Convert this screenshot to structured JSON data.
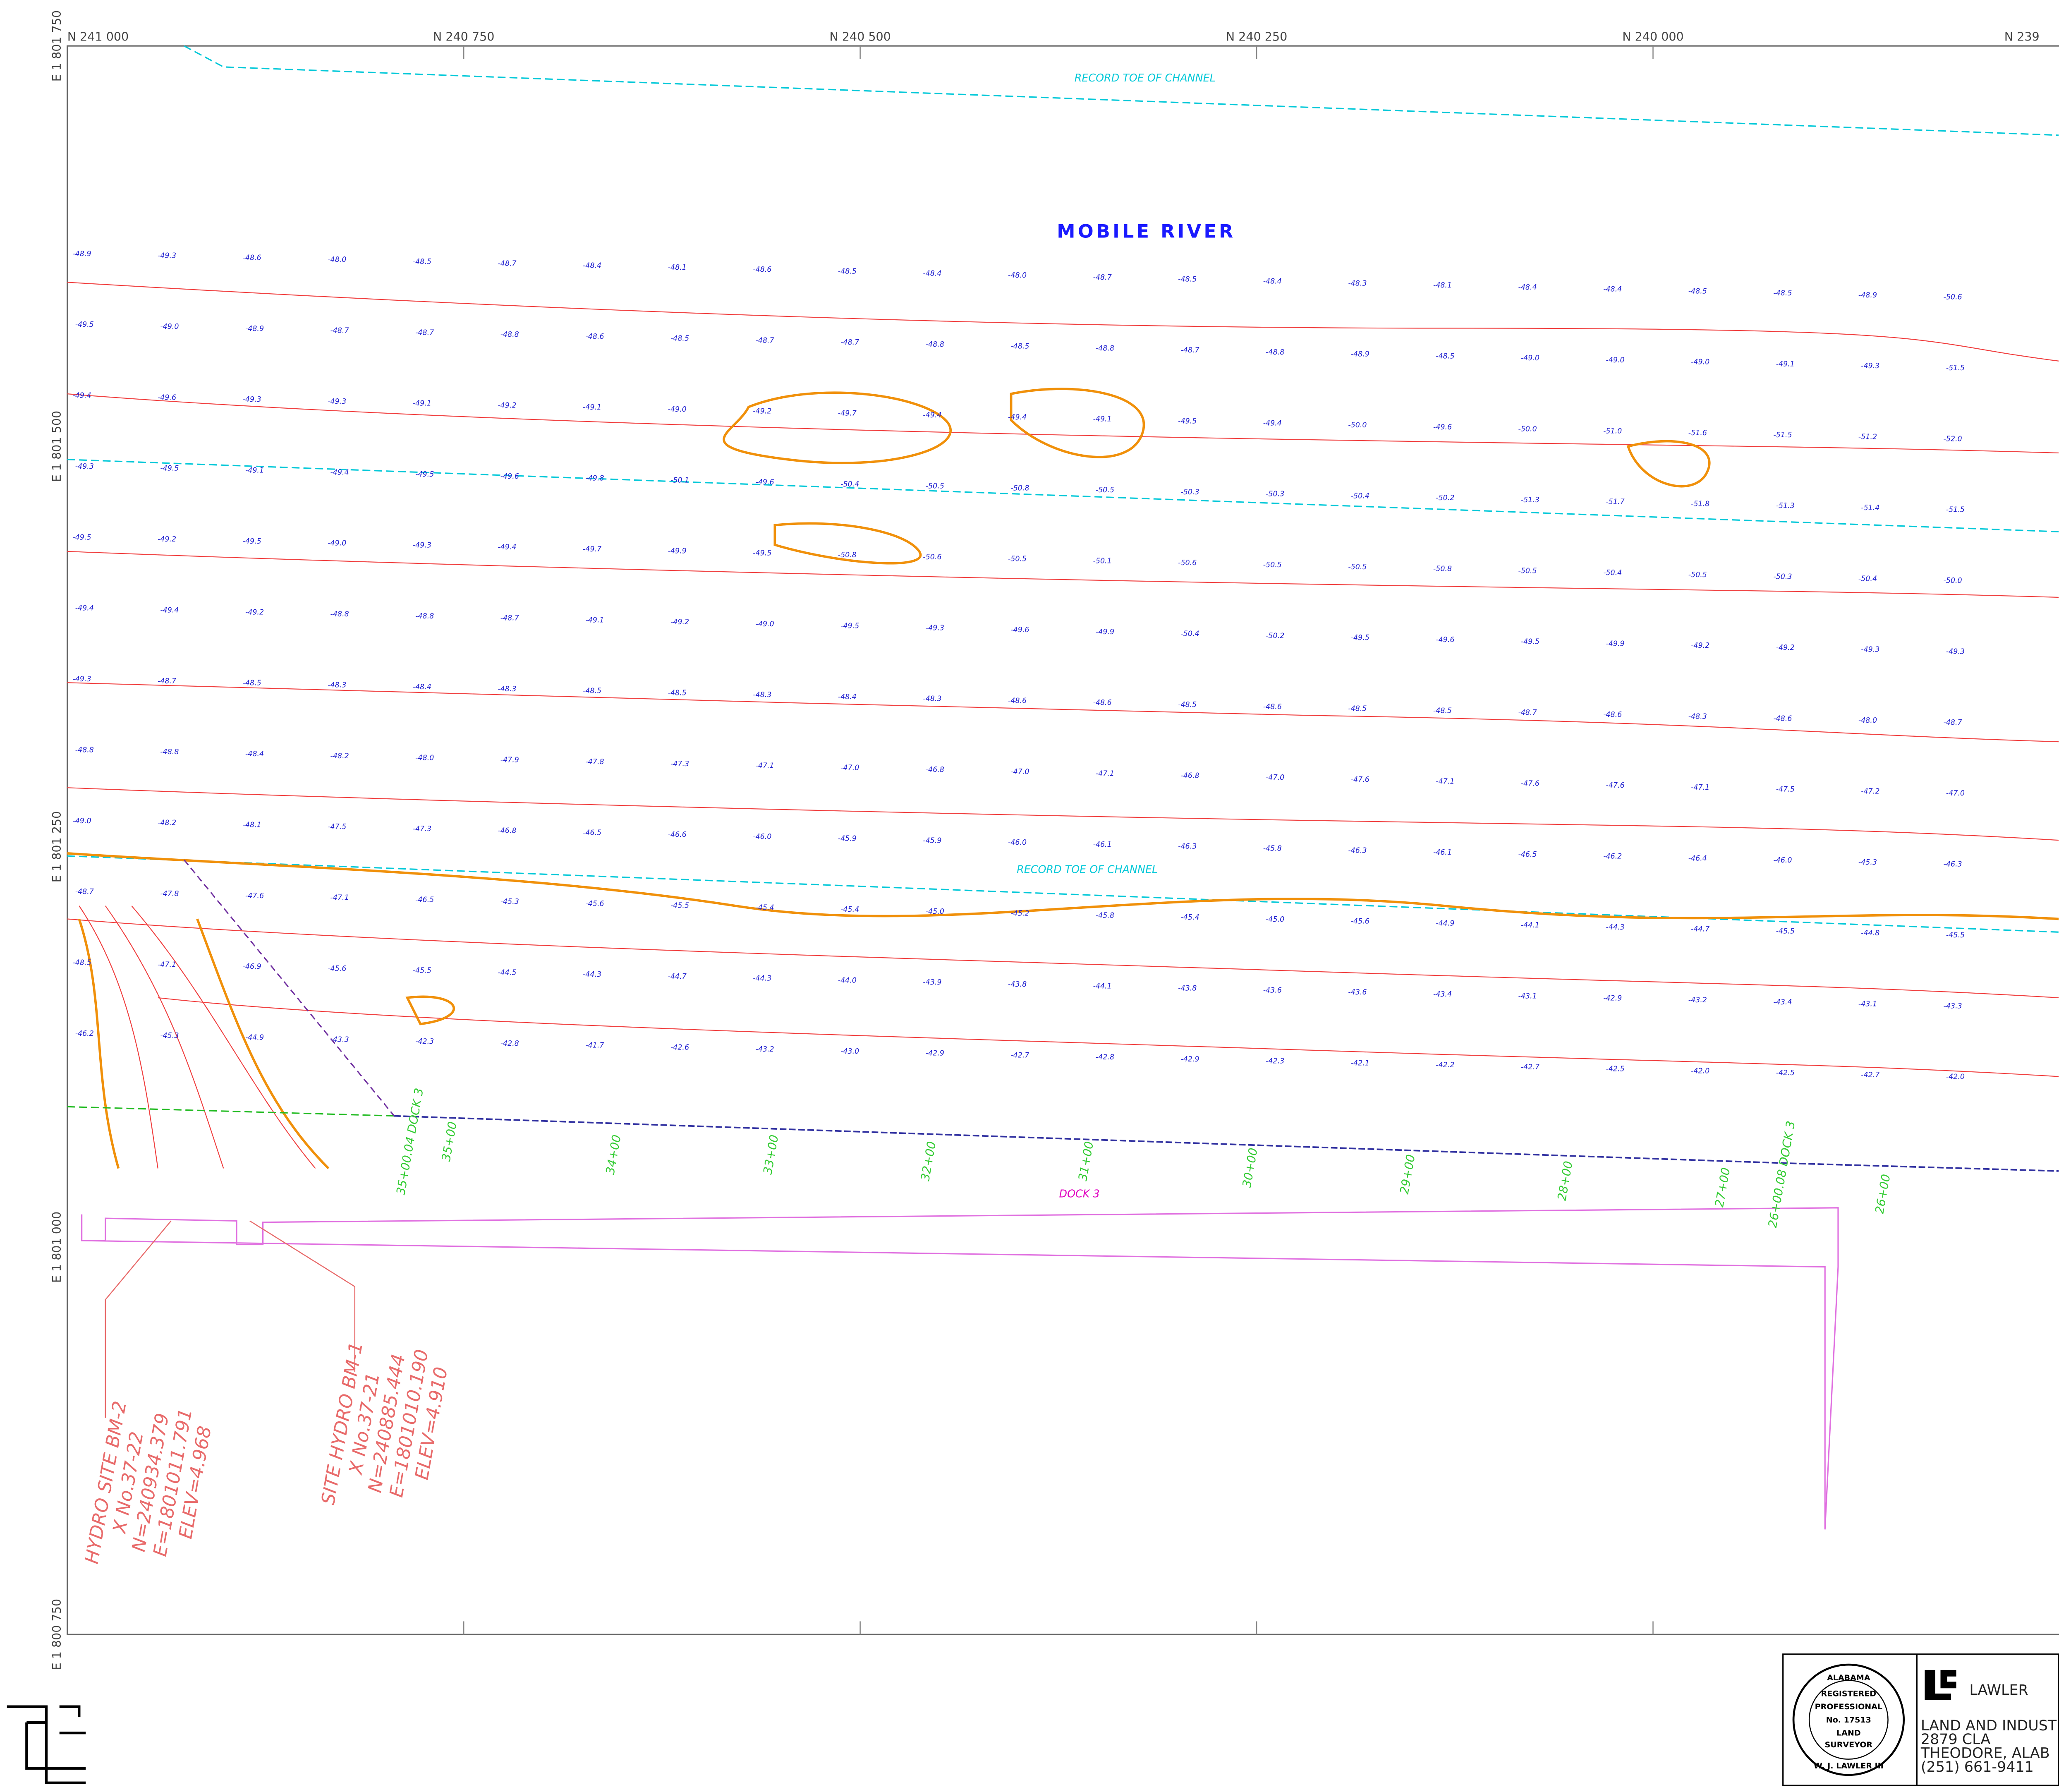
{
  "grid": {
    "north_labels": [
      "N 241 000",
      "N 240 750",
      "N 240 500",
      "N 240 250",
      "N 240 000",
      "N 239"
    ],
    "east_labels": [
      "E 1 801 750",
      "E 1 801 500",
      "E 1 801 250",
      "E 1 801 000",
      "E 1 800 750"
    ]
  },
  "labels": {
    "river": "MOBILE RIVER",
    "toe_top": "RECORD TOE OF CHANNEL",
    "toe_mid": "RECORD TOE OF CHANNEL",
    "dock": "DOCK 3"
  },
  "stations": [
    "35+00.04 DOCK 3",
    "35+00",
    "34+00",
    "33+00",
    "32+00",
    "31+00",
    "30+00",
    "29+00",
    "28+00",
    "27+00",
    "26+00.08 DOCK 3",
    "26+00"
  ],
  "benchmarks": [
    {
      "lines": [
        "HYDRO SITE BM-2",
        "X No.37-22",
        "N=240934.379",
        "E=1801011.791",
        "ELEV=4.968"
      ]
    },
    {
      "lines": [
        "SITE HYDRO BM-1",
        "X No.37-21",
        "N=240885.444",
        "E=1801010.190",
        "ELEV=4.910"
      ]
    }
  ],
  "seal": [
    "ALABAMA",
    "REGISTERED",
    "PROFESSIONAL",
    "No. 17513",
    "LAND",
    "SURVEYOR",
    "W. J. LAWLER III"
  ],
  "company": {
    "name": "LAWLER",
    "lines": [
      "LAND AND INDUST",
      "2879          CLA",
      "THEODORE, ALAB",
      "(251) 661-9411"
    ]
  },
  "soundings": [
    [
      "-48.9",
      "-49.5",
      "-49.4",
      "-49.3",
      "-49.5",
      "-49.4",
      "-49.3",
      "-48.8",
      "-49.0",
      "-48.7",
      "-48.5",
      "-46.2"
    ],
    [
      "-49.3",
      "-49.0",
      "-49.6",
      "-49.5",
      "-49.2",
      "-49.4",
      "-48.7",
      "-48.8",
      "-48.2",
      "-47.8",
      "-47.1",
      "-45.3"
    ],
    [
      "-48.6",
      "-48.9",
      "-49.3",
      "-49.1",
      "-49.5",
      "-49.2",
      "-48.5",
      "-48.4",
      "-48.1",
      "-47.6",
      "-46.9",
      "-44.9"
    ],
    [
      "-48.0",
      "-48.7",
      "-49.3",
      "-49.4",
      "-49.0",
      "-48.8",
      "-48.3",
      "-48.2",
      "-47.5",
      "-47.1",
      "-45.6",
      "-43.3"
    ],
    [
      "-48.5",
      "-48.7",
      "-49.1",
      "-49.5",
      "-49.3",
      "-48.8",
      "-48.4",
      "-48.0",
      "-47.3",
      "-46.5",
      "-45.5",
      "-42.3"
    ],
    [
      "-48.7",
      "-48.8",
      "-49.2",
      "-49.6",
      "-49.4",
      "-48.7",
      "-48.3",
      "-47.9",
      "-46.8",
      "-45.3",
      "-44.5",
      "-42.8"
    ],
    [
      "-48.4",
      "-48.6",
      "-49.1",
      "-49.8",
      "-49.7",
      "-49.1",
      "-48.5",
      "-47.8",
      "-46.5",
      "-45.6",
      "-44.3",
      "-41.7"
    ],
    [
      "-48.1",
      "-48.5",
      "-49.0",
      "-50.1",
      "-49.9",
      "-49.2",
      "-48.5",
      "-47.3",
      "-46.6",
      "-45.5",
      "-44.7",
      "-42.6"
    ],
    [
      "-48.6",
      "-48.7",
      "-49.2",
      "-49.6",
      "-49.5",
      "-49.0",
      "-48.3",
      "-47.1",
      "-46.0",
      "-45.4",
      "-44.3",
      "-43.2"
    ],
    [
      "-48.5",
      "-48.7",
      "-49.7",
      "-50.4",
      "-50.8",
      "-49.5",
      "-48.4",
      "-47.0",
      "-45.9",
      "-45.4",
      "-44.0",
      "-43.0"
    ],
    [
      "-48.4",
      "-48.8",
      "-49.4",
      "-50.5",
      "-50.6",
      "-49.3",
      "-48.3",
      "-46.8",
      "-45.9",
      "-45.0",
      "-43.9",
      "-42.9"
    ],
    [
      "-48.0",
      "-48.5",
      "-49.4",
      "-50.8",
      "-50.5",
      "-49.6",
      "-48.6",
      "-47.0",
      "-46.0",
      "-45.2",
      "-43.8",
      "-42.7"
    ],
    [
      "-48.7",
      "-48.8",
      "-49.1",
      "-50.5",
      "-50.1",
      "-49.9",
      "-48.6",
      "-47.1",
      "-46.1",
      "-45.8",
      "-44.1",
      "-42.8"
    ],
    [
      "-48.5",
      "-48.7",
      "-49.5",
      "-50.3",
      "-50.6",
      "-50.4",
      "-48.5",
      "-46.8",
      "-46.3",
      "-45.4",
      "-43.8",
      "-42.9"
    ],
    [
      "-48.4",
      "-48.8",
      "-49.4",
      "-50.3",
      "-50.5",
      "-50.2",
      "-48.6",
      "-47.0",
      "-45.8",
      "-45.0",
      "-43.6",
      "-42.3"
    ],
    [
      "-48.3",
      "-48.9",
      "-50.0",
      "-50.4",
      "-50.5",
      "-49.5",
      "-48.5",
      "-47.6",
      "-46.3",
      "-45.6",
      "-43.6",
      "-42.1"
    ],
    [
      "-48.1",
      "-48.5",
      "-49.6",
      "-50.2",
      "-50.8",
      "-49.6",
      "-48.5",
      "-47.1",
      "-46.1",
      "-44.9",
      "-43.4",
      "-42.2"
    ],
    [
      "-48.4",
      "-49.0",
      "-50.0",
      "-51.3",
      "-50.5",
      "-49.5",
      "-48.7",
      "-47.6",
      "-46.5",
      "-44.1",
      "-43.1",
      "-42.7"
    ],
    [
      "-48.4",
      "-49.0",
      "-51.0",
      "-51.7",
      "-50.4",
      "-49.9",
      "-48.6",
      "-47.6",
      "-46.2",
      "-44.3",
      "-42.9",
      "-42.5"
    ],
    [
      "-48.5",
      "-49.0",
      "-51.6",
      "-51.8",
      "-50.5",
      "-49.2",
      "-48.3",
      "-47.1",
      "-46.4",
      "-44.7",
      "-43.2",
      "-42.0"
    ],
    [
      "-48.5",
      "-49.1",
      "-51.5",
      "-51.3",
      "-50.3",
      "-49.2",
      "-48.6",
      "-47.5",
      "-46.0",
      "-45.5",
      "-43.4",
      "-42.5"
    ],
    [
      "-48.9",
      "-49.3",
      "-51.2",
      "-51.4",
      "-50.4",
      "-49.3",
      "-48.0",
      "-47.2",
      "-45.3",
      "-44.8",
      "-43.1",
      "-42.7"
    ],
    [
      "-50.6",
      "-51.5",
      "-52.0",
      "-51.5",
      "-50.0",
      "-49.3",
      "-48.7",
      "-47.0",
      "-46.3",
      "-45.5",
      "-43.3",
      "-42.0"
    ]
  ]
}
